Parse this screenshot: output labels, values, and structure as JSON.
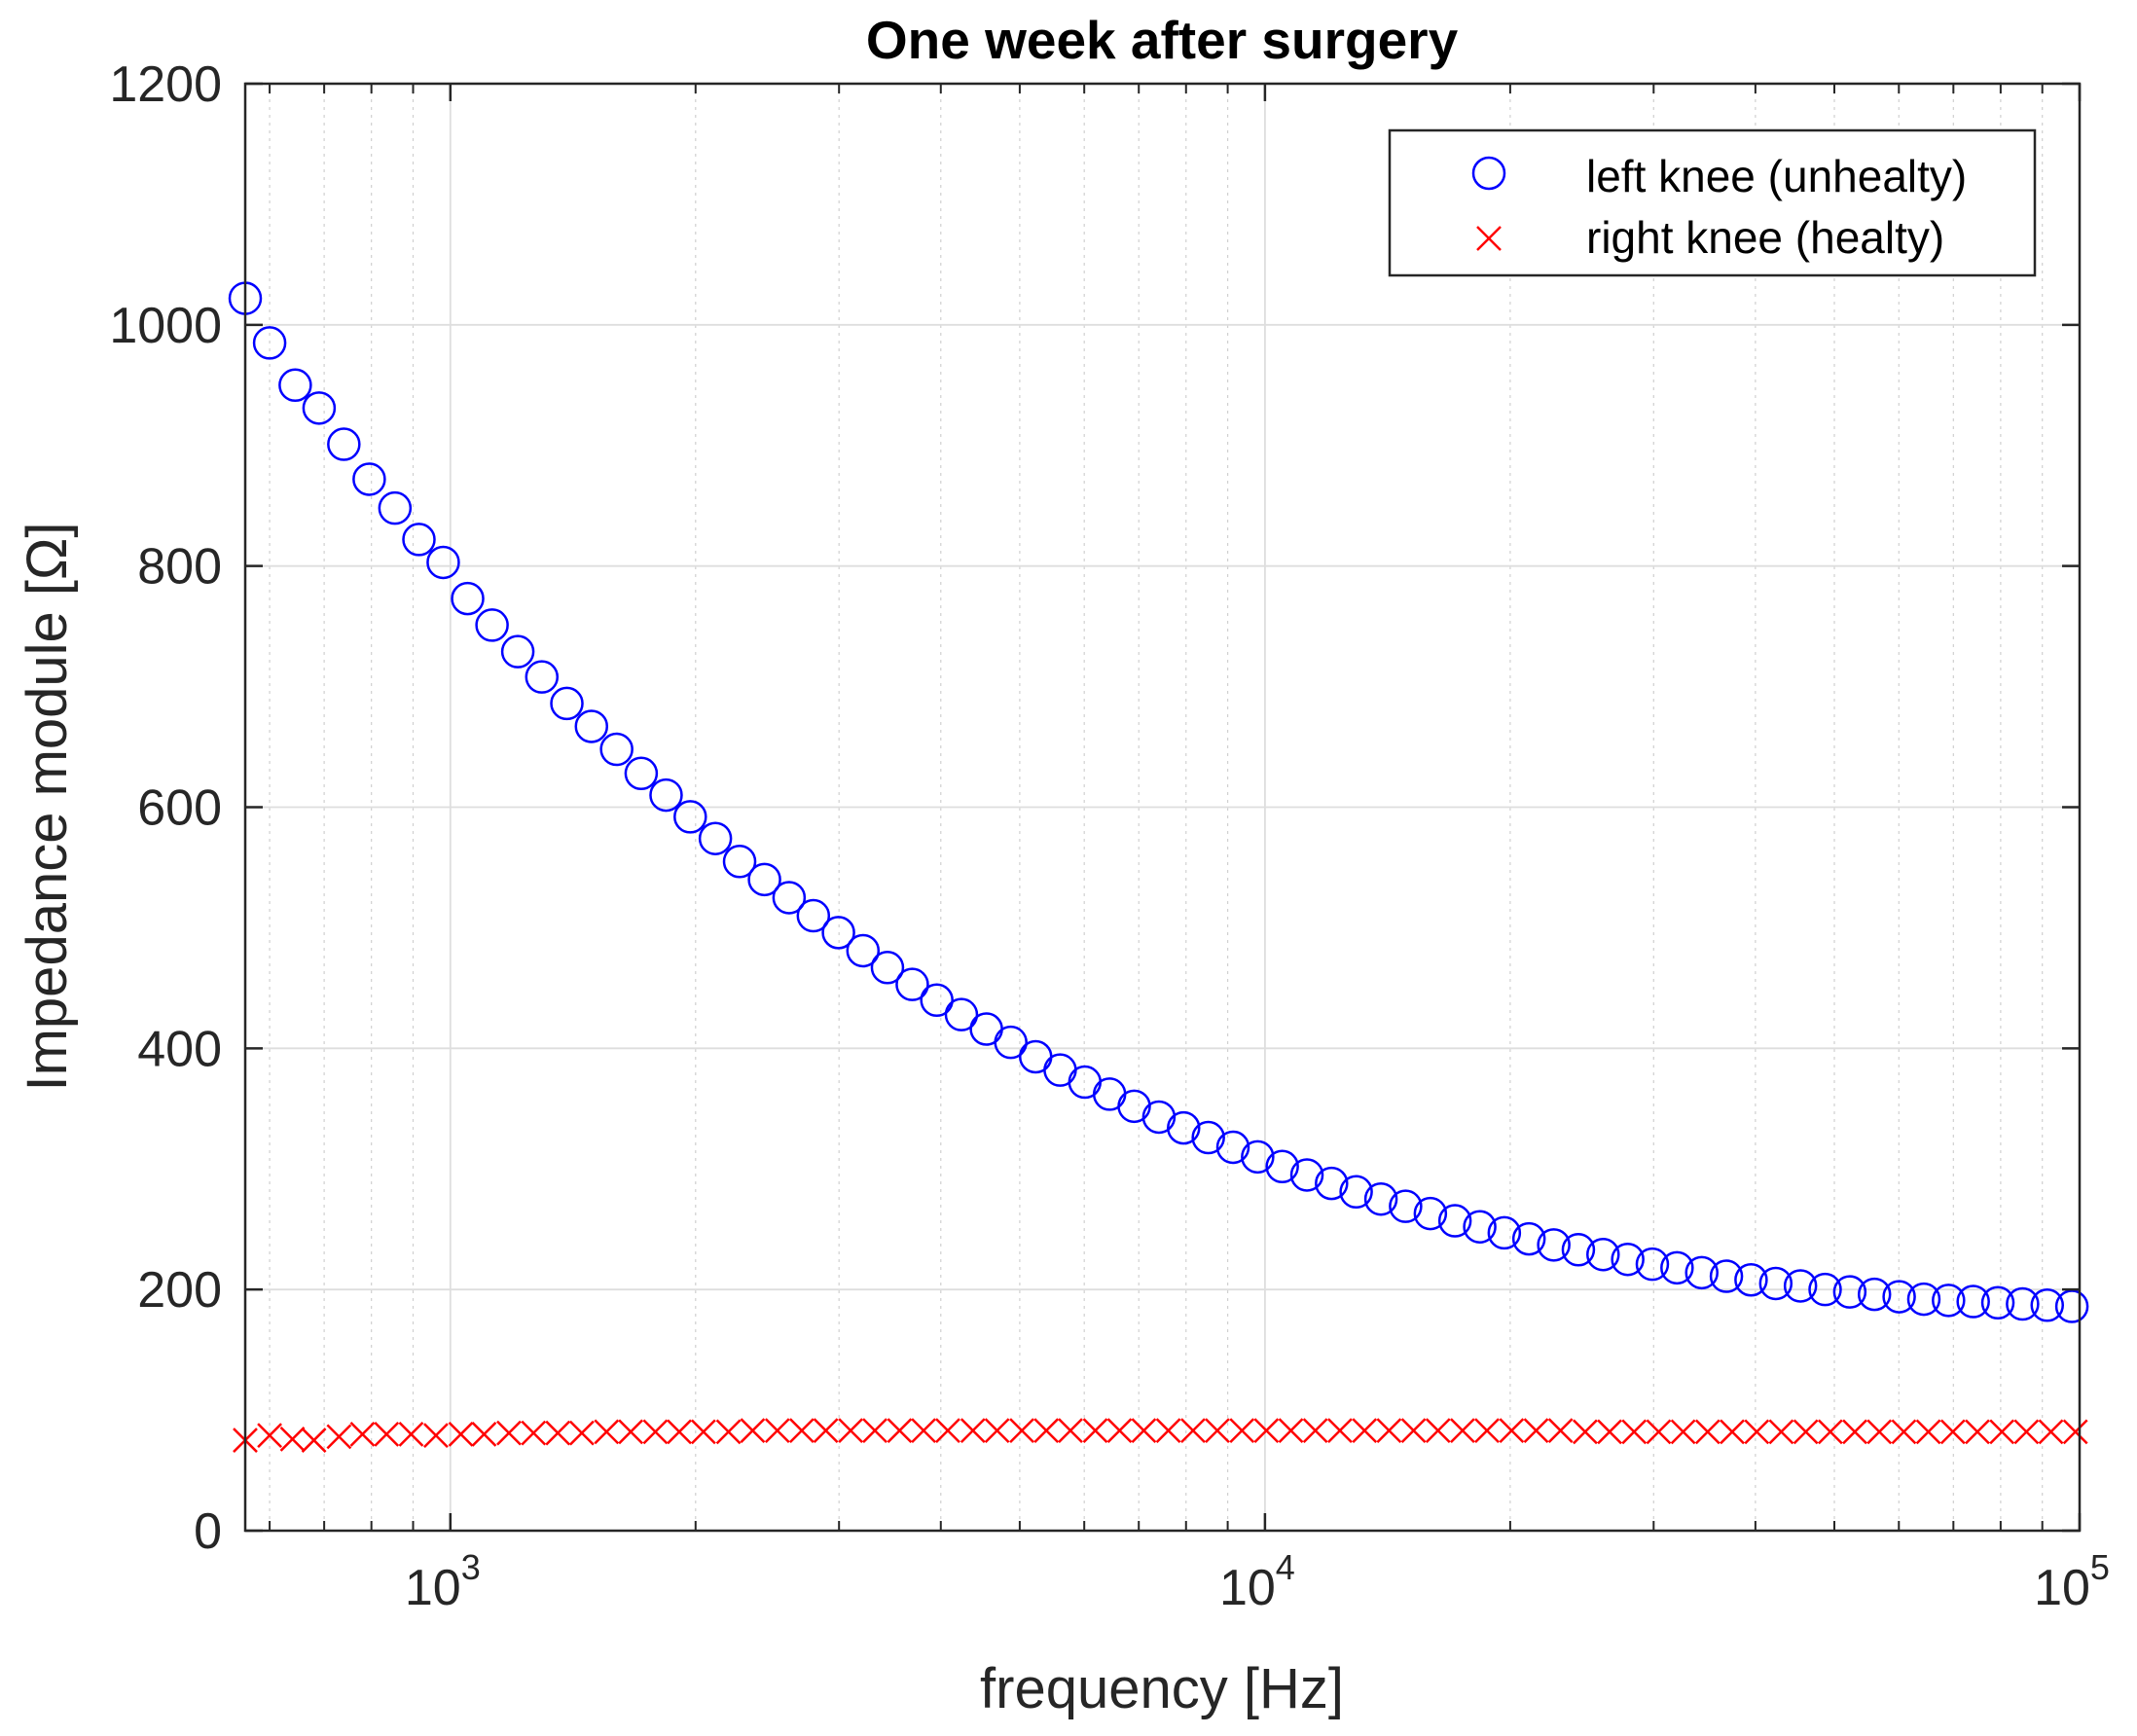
{
  "chart_data": {
    "type": "scatter",
    "title": "One week after surgery",
    "xlabel": "frequency [Hz]",
    "ylabel": "Impedance module [Ω]",
    "xscale": "log",
    "xlim": [
      560,
      100000
    ],
    "ylim": [
      0,
      1200
    ],
    "grid": true,
    "legend_position": "top-right",
    "x_ticks": [
      {
        "value": 1000,
        "base": "10",
        "exp": "3"
      },
      {
        "value": 10000,
        "base": "10",
        "exp": "4"
      },
      {
        "value": 100000,
        "base": "10",
        "exp": "5"
      }
    ],
    "y_ticks": [
      {
        "value": 0,
        "label": "0"
      },
      {
        "value": 200,
        "label": "200"
      },
      {
        "value": 400,
        "label": "400"
      },
      {
        "value": 600,
        "label": "600"
      },
      {
        "value": 800,
        "label": "800"
      },
      {
        "value": 1000,
        "label": "1000"
      },
      {
        "value": 1200,
        "label": "1200"
      }
    ],
    "series": [
      {
        "name": "left knee (unhealty)",
        "marker": "circle",
        "color": "#0000ff",
        "points": [
          [
            560,
            1022
          ],
          [
            600,
            985
          ],
          [
            645,
            950
          ],
          [
            690,
            931
          ],
          [
            740,
            901
          ],
          [
            795,
            872
          ],
          [
            855,
            848
          ],
          [
            915,
            822
          ],
          [
            980,
            803
          ],
          [
            1050,
            773
          ],
          [
            1125,
            751
          ],
          [
            1210,
            729
          ],
          [
            1295,
            708
          ],
          [
            1390,
            686
          ],
          [
            1490,
            667
          ],
          [
            1600,
            648
          ],
          [
            1715,
            628
          ],
          [
            1840,
            610
          ],
          [
            1970,
            592
          ],
          [
            2115,
            574
          ],
          [
            2265,
            555
          ],
          [
            2430,
            540
          ],
          [
            2605,
            525
          ],
          [
            2790,
            510
          ],
          [
            2995,
            496
          ],
          [
            3210,
            481
          ],
          [
            3440,
            467
          ],
          [
            3690,
            453
          ],
          [
            3955,
            440
          ],
          [
            4240,
            428
          ],
          [
            4550,
            416
          ],
          [
            4875,
            405
          ],
          [
            5230,
            393
          ],
          [
            5605,
            382
          ],
          [
            6010,
            372
          ],
          [
            6445,
            362
          ],
          [
            6910,
            352
          ],
          [
            7410,
            343
          ],
          [
            7945,
            334
          ],
          [
            8520,
            326
          ],
          [
            9135,
            318
          ],
          [
            9795,
            310
          ],
          [
            10500,
            302
          ],
          [
            11260,
            295
          ],
          [
            12070,
            288
          ],
          [
            12940,
            281
          ],
          [
            13880,
            275
          ],
          [
            14880,
            269
          ],
          [
            15960,
            263
          ],
          [
            17110,
            257
          ],
          [
            18350,
            252
          ],
          [
            19670,
            247
          ],
          [
            21090,
            242
          ],
          [
            22620,
            237
          ],
          [
            24250,
            233
          ],
          [
            26000,
            229
          ],
          [
            27880,
            225
          ],
          [
            29890,
            221
          ],
          [
            32050,
            218
          ],
          [
            34370,
            214
          ],
          [
            36850,
            211
          ],
          [
            39510,
            208
          ],
          [
            42370,
            205
          ],
          [
            45430,
            203
          ],
          [
            48710,
            200
          ],
          [
            52230,
            198
          ],
          [
            56000,
            196
          ],
          [
            60050,
            194
          ],
          [
            64390,
            192
          ],
          [
            69040,
            191
          ],
          [
            74030,
            190
          ],
          [
            79380,
            189
          ],
          [
            85110,
            188
          ],
          [
            91260,
            187
          ],
          [
            97850,
            186
          ]
        ]
      },
      {
        "name": "right knee (healty)",
        "marker": "x",
        "color": "#ff0000",
        "points": [
          [
            560,
            75
          ],
          [
            600,
            79
          ],
          [
            640,
            76
          ],
          [
            680,
            75
          ],
          [
            730,
            78
          ],
          [
            780,
            80
          ],
          [
            835,
            80
          ],
          [
            895,
            80
          ],
          [
            960,
            79
          ],
          [
            1030,
            80
          ],
          [
            1100,
            80
          ],
          [
            1180,
            81
          ],
          [
            1265,
            81
          ],
          [
            1355,
            81
          ],
          [
            1450,
            81
          ],
          [
            1555,
            82
          ],
          [
            1665,
            82
          ],
          [
            1785,
            82
          ],
          [
            1910,
            82
          ],
          [
            2045,
            82
          ],
          [
            2195,
            82
          ],
          [
            2350,
            83
          ],
          [
            2520,
            83
          ],
          [
            2700,
            83
          ],
          [
            2890,
            83
          ],
          [
            3100,
            83
          ],
          [
            3320,
            83
          ],
          [
            3560,
            83
          ],
          [
            3810,
            83
          ],
          [
            4080,
            83
          ],
          [
            4380,
            83
          ],
          [
            4690,
            83
          ],
          [
            5030,
            83
          ],
          [
            5390,
            83
          ],
          [
            5770,
            83
          ],
          [
            6190,
            83
          ],
          [
            6630,
            83
          ],
          [
            7100,
            83
          ],
          [
            7610,
            83
          ],
          [
            8160,
            83
          ],
          [
            8740,
            83
          ],
          [
            9370,
            83
          ],
          [
            10040,
            83
          ],
          [
            10760,
            83
          ],
          [
            11530,
            83
          ],
          [
            12360,
            83
          ],
          [
            13250,
            83
          ],
          [
            14200,
            83
          ],
          [
            15220,
            83
          ],
          [
            16310,
            83
          ],
          [
            17480,
            83
          ],
          [
            18730,
            83
          ],
          [
            20080,
            83
          ],
          [
            21520,
            83
          ],
          [
            23060,
            83
          ],
          [
            24720,
            82
          ],
          [
            26490,
            82
          ],
          [
            28390,
            82
          ],
          [
            30430,
            82
          ],
          [
            32610,
            82
          ],
          [
            34950,
            82
          ],
          [
            37460,
            82
          ],
          [
            40150,
            82
          ],
          [
            43030,
            82
          ],
          [
            46120,
            82
          ],
          [
            49430,
            82
          ],
          [
            52980,
            82
          ],
          [
            56780,
            82
          ],
          [
            60850,
            82
          ],
          [
            65220,
            82
          ],
          [
            69900,
            82
          ],
          [
            74910,
            82
          ],
          [
            80290,
            82
          ],
          [
            86050,
            82
          ],
          [
            92220,
            82
          ],
          [
            98830,
            82
          ]
        ]
      }
    ]
  }
}
